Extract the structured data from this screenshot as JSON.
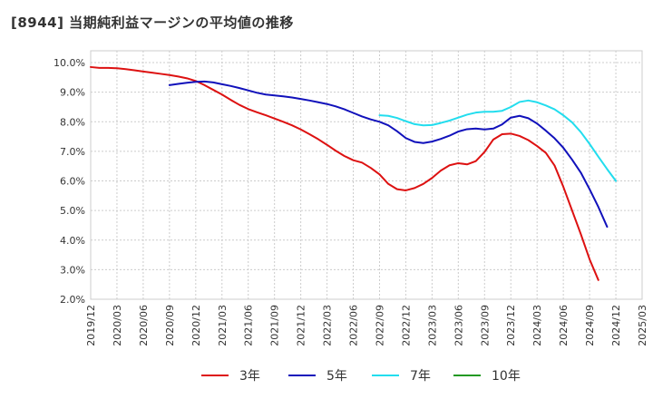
{
  "chart_data": {
    "type": "line",
    "title": "[8944]  当期純利益マージンの平均値の推移",
    "xlabel": "",
    "ylabel": "",
    "ylim": [
      2.0,
      10.4
    ],
    "yticks": [
      2.0,
      3.0,
      4.0,
      5.0,
      6.0,
      7.0,
      8.0,
      9.0,
      10.0
    ],
    "ytick_labels": [
      "2.0%",
      "3.0%",
      "4.0%",
      "5.0%",
      "6.0%",
      "7.0%",
      "8.0%",
      "9.0%",
      "10.0%"
    ],
    "xtick_labels": [
      "2019/12",
      "2020/03",
      "2020/06",
      "2020/09",
      "2020/12",
      "2021/03",
      "2021/06",
      "2021/09",
      "2021/12",
      "2022/03",
      "2022/06",
      "2022/09",
      "2022/12",
      "2023/03",
      "2023/06",
      "2023/09",
      "2023/12",
      "2024/03",
      "2024/06",
      "2024/09",
      "2024/12",
      "2025/03"
    ],
    "grid": true,
    "legend_position": "bottom",
    "series": [
      {
        "name": "3年",
        "color": "#dd1111",
        "start_index": 0,
        "values": [
          9.85,
          9.82,
          9.82,
          9.81,
          9.78,
          9.74,
          9.7,
          9.66,
          9.62,
          9.58,
          9.53,
          9.47,
          9.38,
          9.24,
          9.08,
          8.92,
          8.74,
          8.57,
          8.43,
          8.32,
          8.22,
          8.11,
          8.0,
          7.88,
          7.74,
          7.58,
          7.41,
          7.22,
          7.02,
          6.84,
          6.7,
          6.62,
          6.44,
          6.22,
          5.9,
          5.72,
          5.68,
          5.76,
          5.9,
          6.1,
          6.35,
          6.53,
          6.6,
          6.56,
          6.67,
          6.98,
          7.4,
          7.58,
          7.6,
          7.52,
          7.38,
          7.18,
          6.95,
          6.52,
          5.8,
          5.0,
          4.2,
          3.35,
          2.65
        ]
      },
      {
        "name": "5年",
        "color": "#1111bb",
        "start_index": 9,
        "values": [
          9.24,
          9.28,
          9.32,
          9.35,
          9.36,
          9.33,
          9.27,
          9.21,
          9.14,
          9.06,
          8.98,
          8.92,
          8.89,
          8.86,
          8.82,
          8.77,
          8.72,
          8.66,
          8.6,
          8.52,
          8.42,
          8.3,
          8.18,
          8.08,
          8.0,
          7.88,
          7.68,
          7.45,
          7.32,
          7.28,
          7.33,
          7.42,
          7.53,
          7.67,
          7.75,
          7.77,
          7.74,
          7.77,
          7.91,
          8.14,
          8.2,
          8.12,
          7.94,
          7.7,
          7.44,
          7.12,
          6.72,
          6.28,
          5.72,
          5.12,
          4.45
        ]
      },
      {
        "name": "7年",
        "color": "#22ddee",
        "start_index": 33,
        "values": [
          8.22,
          8.2,
          8.13,
          8.02,
          7.92,
          7.88,
          7.89,
          7.96,
          8.04,
          8.14,
          8.24,
          8.31,
          8.34,
          8.34,
          8.37,
          8.5,
          8.67,
          8.72,
          8.66,
          8.55,
          8.42,
          8.22,
          7.98,
          7.65,
          7.25,
          6.82,
          6.4,
          6.0
        ]
      },
      {
        "name": "10年",
        "color": "#229922",
        "start_index": 0,
        "values": []
      }
    ]
  }
}
